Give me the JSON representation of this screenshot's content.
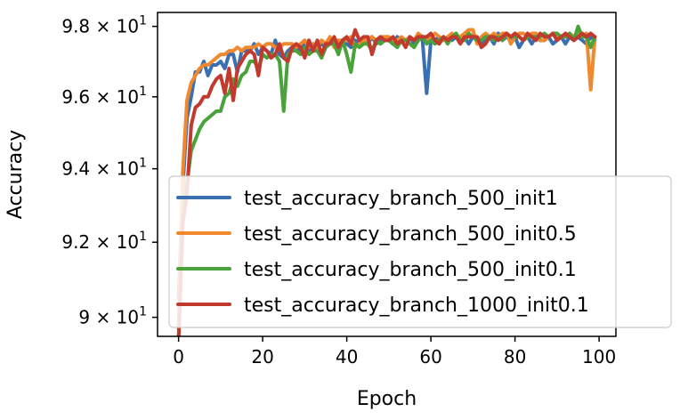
{
  "chart_data": {
    "type": "line",
    "title": "",
    "xlabel": "Epoch",
    "ylabel": "Accuracy",
    "xlim": [
      -5,
      104
    ],
    "ylim": [
      89.5,
      98.4
    ],
    "yscale": "log",
    "grid": false,
    "legend_position": "lower-right",
    "x_ticks": [
      {
        "value": 0,
        "label": "0"
      },
      {
        "value": 20,
        "label": "20"
      },
      {
        "value": 40,
        "label": "40"
      },
      {
        "value": 60,
        "label": "60"
      },
      {
        "value": 80,
        "label": "80"
      },
      {
        "value": 100,
        "label": "100"
      }
    ],
    "y_ticks": [
      {
        "value": 90,
        "mantissa": "9",
        "base": "10",
        "exp": "1"
      },
      {
        "value": 92,
        "mantissa": "9.2",
        "base": "10",
        "exp": "1"
      },
      {
        "value": 94,
        "mantissa": "9.4",
        "base": "10",
        "exp": "1"
      },
      {
        "value": 96,
        "mantissa": "9.6",
        "base": "10",
        "exp": "1"
      },
      {
        "value": 98,
        "mantissa": "9.8",
        "base": "10",
        "exp": "1"
      }
    ],
    "x": [
      0,
      1,
      2,
      3,
      4,
      5,
      6,
      7,
      8,
      9,
      10,
      11,
      12,
      13,
      14,
      15,
      16,
      17,
      18,
      19,
      20,
      21,
      22,
      23,
      24,
      25,
      26,
      27,
      28,
      29,
      30,
      31,
      32,
      33,
      34,
      35,
      36,
      37,
      38,
      39,
      40,
      41,
      42,
      43,
      44,
      45,
      46,
      47,
      48,
      49,
      50,
      51,
      52,
      53,
      54,
      55,
      56,
      57,
      58,
      59,
      60,
      61,
      62,
      63,
      64,
      65,
      66,
      67,
      68,
      69,
      70,
      71,
      72,
      73,
      74,
      75,
      76,
      77,
      78,
      79,
      80,
      81,
      82,
      83,
      84,
      85,
      86,
      87,
      88,
      89,
      90,
      91,
      92,
      93,
      94,
      95,
      96,
      97,
      98,
      99
    ],
    "series": [
      {
        "name": "test_accuracy_branch_500_init1",
        "color": "#3a6fb0",
        "values": [
          90.5,
          93.5,
          95.4,
          96.0,
          96.7,
          96.7,
          97.0,
          96.6,
          96.9,
          96.9,
          97.0,
          96.8,
          97.2,
          97.2,
          96.7,
          97.3,
          97.3,
          97.3,
          97.5,
          97.2,
          97.4,
          97.3,
          97.2,
          97.6,
          97.2,
          97.1,
          97.3,
          97.4,
          97.4,
          97.3,
          97.6,
          97.3,
          97.5,
          97.4,
          97.5,
          97.4,
          97.6,
          97.5,
          97.6,
          97.5,
          97.5,
          97.4,
          97.6,
          97.5,
          97.6,
          97.5,
          97.7,
          97.5,
          97.6,
          97.6,
          97.6,
          97.5,
          97.7,
          97.6,
          97.6,
          97.7,
          97.5,
          97.7,
          97.6,
          96.1,
          97.6,
          97.6,
          97.7,
          97.6,
          97.7,
          97.6,
          97.7,
          97.6,
          97.7,
          97.5,
          97.7,
          97.6,
          97.5,
          97.6,
          97.7,
          97.5,
          97.8,
          97.6,
          97.7,
          97.6,
          97.7,
          97.4,
          97.6,
          97.7,
          97.5,
          97.7,
          97.6,
          97.6,
          97.7,
          97.5,
          97.6,
          97.7,
          97.5,
          97.7,
          97.6,
          97.7,
          97.6,
          97.5,
          97.7,
          97.6
        ]
      },
      {
        "name": "test_accuracy_branch_500_init0.5",
        "color": "#f0892e",
        "values": [
          89.7,
          93.9,
          95.9,
          96.4,
          96.6,
          96.8,
          96.9,
          96.9,
          97.0,
          97.1,
          97.2,
          97.2,
          97.3,
          97.3,
          97.4,
          97.3,
          97.4,
          97.4,
          97.4,
          97.5,
          97.4,
          97.5,
          97.5,
          97.4,
          97.4,
          97.5,
          97.5,
          97.5,
          97.4,
          97.5,
          97.6,
          97.4,
          97.5,
          97.4,
          97.6,
          97.5,
          97.7,
          97.4,
          97.6,
          97.6,
          97.6,
          97.7,
          97.4,
          97.5,
          97.6,
          97.6,
          97.7,
          97.6,
          97.7,
          97.7,
          97.7,
          97.6,
          97.6,
          97.7,
          97.6,
          97.7,
          97.6,
          97.8,
          97.7,
          97.6,
          97.7,
          97.8,
          97.7,
          97.6,
          97.7,
          97.8,
          97.7,
          97.7,
          97.8,
          97.9,
          97.9,
          97.5,
          97.7,
          97.8,
          97.7,
          97.8,
          97.7,
          97.8,
          97.8,
          97.5,
          97.7,
          97.8,
          97.8,
          97.7,
          97.8,
          97.8,
          97.6,
          97.6,
          97.7,
          97.8,
          97.7,
          97.7,
          97.7,
          97.8,
          97.7,
          97.8,
          97.7,
          97.8,
          96.2,
          97.7
        ]
      },
      {
        "name": "test_accuracy_branch_500_init0.1",
        "color": "#4aa23a",
        "values": [
          89.4,
          92.6,
          93.6,
          94.5,
          94.8,
          95.1,
          95.3,
          95.4,
          95.5,
          95.6,
          95.6,
          96.0,
          96.1,
          96.5,
          96.3,
          96.6,
          96.7,
          97.0,
          97.0,
          96.8,
          97.2,
          97.1,
          97.2,
          97.2,
          97.0,
          95.6,
          97.2,
          97.3,
          97.3,
          97.2,
          97.4,
          97.2,
          97.3,
          97.3,
          97.1,
          97.4,
          97.5,
          97.5,
          97.2,
          97.6,
          97.2,
          96.7,
          97.5,
          97.4,
          97.5,
          97.5,
          97.3,
          97.6,
          97.5,
          97.6,
          97.6,
          97.5,
          97.4,
          97.6,
          97.6,
          97.5,
          97.4,
          97.6,
          97.7,
          97.5,
          97.6,
          97.5,
          97.6,
          97.7,
          97.5,
          97.7,
          97.8,
          97.6,
          97.6,
          97.8,
          97.7,
          97.6,
          97.6,
          97.7,
          97.7,
          97.6,
          97.7,
          97.6,
          97.8,
          97.7,
          97.7,
          97.7,
          97.6,
          97.7,
          97.7,
          97.7,
          97.7,
          97.8,
          97.7,
          97.8,
          97.8,
          97.7,
          97.7,
          97.8,
          97.6,
          98.0,
          97.7,
          97.7,
          97.4,
          97.7
        ]
      },
      {
        "name": "test_accuracy_branch_1000_init0.1",
        "color": "#c23a2e",
        "values": [
          89.4,
          92.5,
          93.3,
          95.2,
          95.7,
          95.8,
          96.0,
          96.0,
          96.3,
          96.5,
          96.6,
          96.1,
          96.8,
          95.9,
          96.8,
          97.0,
          97.2,
          97.3,
          97.2,
          96.6,
          97.4,
          97.3,
          97.1,
          97.2,
          97.5,
          97.1,
          97.0,
          97.4,
          97.5,
          97.4,
          97.1,
          97.6,
          97.3,
          97.6,
          97.2,
          97.5,
          97.5,
          97.7,
          97.4,
          97.6,
          97.7,
          97.5,
          97.9,
          97.6,
          97.7,
          97.7,
          97.2,
          97.6,
          97.7,
          97.6,
          97.6,
          97.7,
          97.5,
          97.6,
          97.4,
          97.7,
          97.6,
          97.7,
          97.7,
          97.7,
          97.8,
          97.6,
          97.5,
          97.7,
          97.6,
          97.7,
          97.7,
          97.5,
          97.7,
          97.7,
          97.7,
          97.7,
          97.4,
          97.5,
          97.7,
          97.7,
          97.6,
          97.7,
          97.8,
          97.7,
          97.8,
          97.7,
          97.6,
          97.8,
          97.7,
          97.6,
          97.8,
          97.7,
          97.7,
          97.8,
          97.6,
          97.7,
          97.8,
          97.7,
          97.6,
          97.7,
          97.8,
          97.7,
          97.8,
          97.7
        ]
      }
    ]
  }
}
